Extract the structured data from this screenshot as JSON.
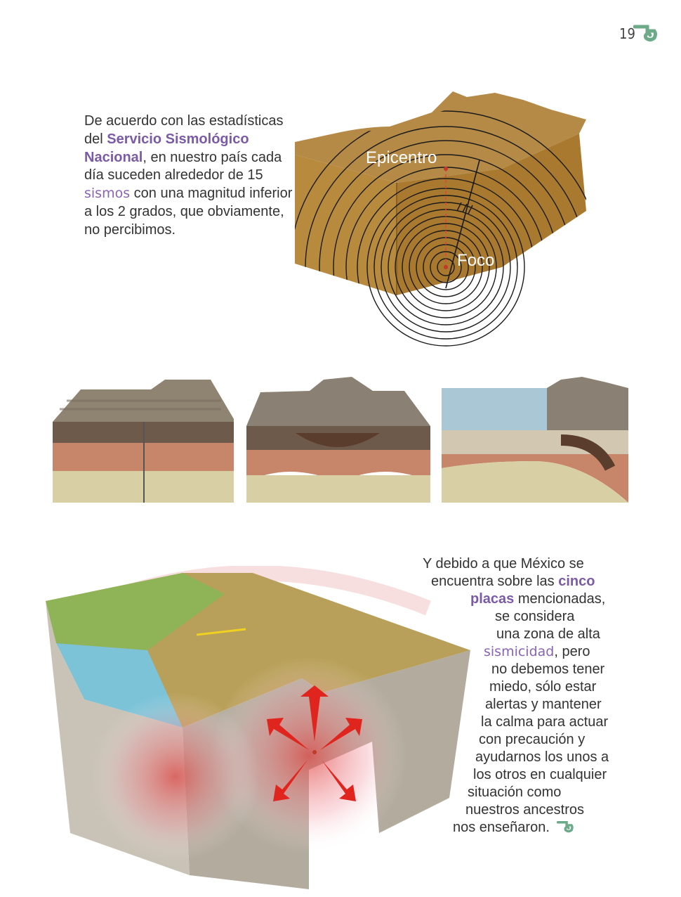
{
  "page": {
    "number": "19",
    "accent": "#6daa8a",
    "highlight": "#7b5aa6"
  },
  "intro": {
    "t1": "De acuerdo con las estadísticas del ",
    "t2": "Servicio Sismológico Nacional",
    "t3": ", en nuestro país cada día suceden alrededor de 15 ",
    "t4": "sismos",
    "t5": " con una magnitud inferior a los 2 grados, que obviamente, no percibimos."
  },
  "diagram": {
    "epicenter_label": "Epicentro",
    "focus_label": "Foco"
  },
  "closing": {
    "l1": "Y debido a que México se",
    "l2a": "encuentra sobre las ",
    "l2b": "cinco",
    "l3a": "placas",
    "l3b": " mencionadas,",
    "l4": "se considera",
    "l5": "una zona de alta",
    "l6a": "sismicidad",
    "l6b": ", pero",
    "l7": "no debemos tener",
    "l8": "miedo, sólo estar",
    "l9": "alertas y mantener",
    "l10": "la calma para actuar",
    "l11": "con precaución y",
    "l12": "ayudarnos los unos a",
    "l13": "los otros en cualquier",
    "l14": "situación como",
    "l15": "nuestros ancestros",
    "l16": "nos enseñaron."
  }
}
